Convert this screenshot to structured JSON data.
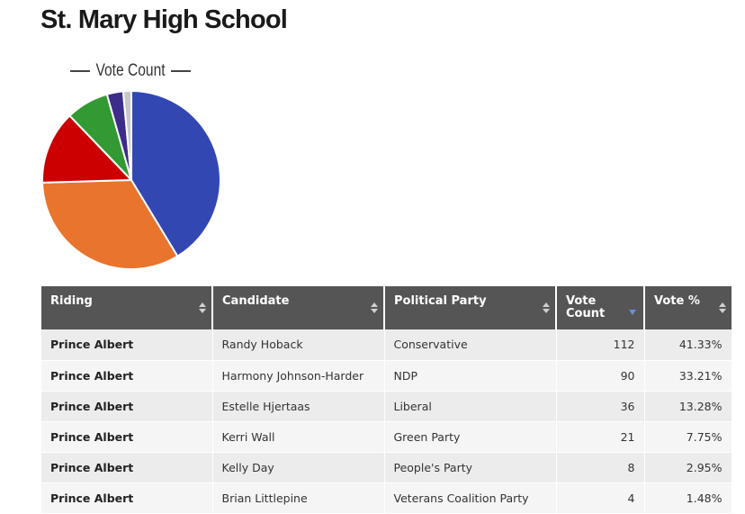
{
  "header": {
    "title": "St. Mary High School"
  },
  "chart_data": {
    "type": "pie",
    "title": "Vote Count",
    "categories": [
      "Conservative",
      "NDP",
      "Liberal",
      "Green Party",
      "People's Party",
      "Veterans Coalition Party"
    ],
    "values": [
      112,
      90,
      36,
      21,
      8,
      4
    ],
    "colors": [
      "#3347b3",
      "#e8742d",
      "#cc0000",
      "#339933",
      "#3d2d8a",
      "#c8c8c8"
    ],
    "legend": "none"
  },
  "table": {
    "headers": {
      "riding": "Riding",
      "candidate": "Candidate",
      "party": "Political Party",
      "vote_count": "Vote Count",
      "vote_pct": "Vote %"
    },
    "rows": [
      {
        "riding": "Prince Albert",
        "candidate": "Randy Hoback",
        "party": "Conservative",
        "votes": "112",
        "pct": "41.33%"
      },
      {
        "riding": "Prince Albert",
        "candidate": "Harmony Johnson-Harder",
        "party": "NDP",
        "votes": "90",
        "pct": "33.21%"
      },
      {
        "riding": "Prince Albert",
        "candidate": "Estelle Hjertaas",
        "party": "Liberal",
        "votes": "36",
        "pct": "13.28%"
      },
      {
        "riding": "Prince Albert",
        "candidate": "Kerri Wall",
        "party": "Green Party",
        "votes": "21",
        "pct": "7.75%"
      },
      {
        "riding": "Prince Albert",
        "candidate": "Kelly Day",
        "party": "People's Party",
        "votes": "8",
        "pct": "2.95%"
      },
      {
        "riding": "Prince Albert",
        "candidate": "Brian Littlepine",
        "party": "Veterans Coalition Party",
        "votes": "4",
        "pct": "1.48%"
      }
    ]
  }
}
